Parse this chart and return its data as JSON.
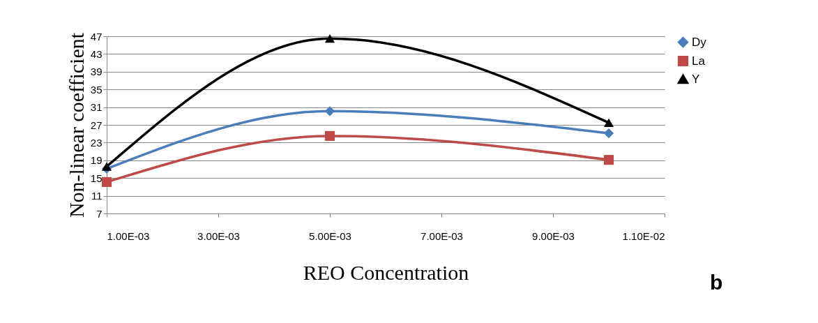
{
  "chart_data": {
    "type": "line",
    "xlabel": "REO Concentration",
    "ylabel": "Non-linear coefficient",
    "x": [
      0.001,
      0.005,
      0.01
    ],
    "series": [
      {
        "name": "Dy",
        "color": "#4a7ebb",
        "marker": "diamond",
        "values": [
          17.1,
          30.1,
          25.1
        ]
      },
      {
        "name": "La",
        "color": "#be4b48",
        "marker": "square",
        "values": [
          14.1,
          24.5,
          19.1
        ]
      },
      {
        "name": "Y",
        "color": "#000000",
        "marker": "triangle",
        "values": [
          17.6,
          46.5,
          27.5
        ]
      }
    ],
    "xlim": [
      0.001,
      0.011
    ],
    "xticks": [
      {
        "value": 0.001,
        "label": "1.00E-03"
      },
      {
        "value": 0.003,
        "label": "3.00E-03"
      },
      {
        "value": 0.005,
        "label": "5.00E-03"
      },
      {
        "value": 0.007,
        "label": "7.00E-03"
      },
      {
        "value": 0.009,
        "label": "9.00E-03"
      },
      {
        "value": 0.011,
        "label": "1.10E-02"
      }
    ],
    "ylim": [
      7,
      47
    ],
    "yticks": [
      7,
      11,
      15,
      19,
      23,
      27,
      31,
      35,
      39,
      43,
      47
    ],
    "grid": "y",
    "legend": "top right",
    "line_style": "solid",
    "annotations": [
      "b"
    ]
  }
}
